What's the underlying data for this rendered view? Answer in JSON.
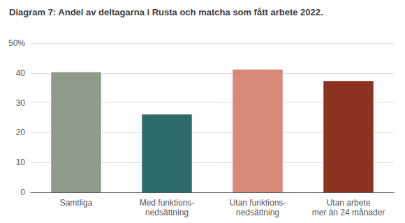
{
  "chart_data": {
    "type": "bar",
    "title": "Diagram 7: Andel av deltagarna i Rusta och matcha som fått arbete 2022.",
    "categories": [
      "Samtliga",
      "Med funktions-\nnedsättning",
      "Utan funktions-\nnedsättning",
      "Utan arbete\nmer än 24 månader"
    ],
    "values": [
      40.3,
      26.1,
      41.2,
      37.3
    ],
    "colors": [
      "#8f9a8b",
      "#2e6b6b",
      "#d9897a",
      "#8b3320"
    ],
    "ylim": [
      0,
      50
    ],
    "yticks": [
      0,
      10,
      20,
      30,
      40,
      {
        "value": 50,
        "label": "50%"
      }
    ],
    "grid": true
  }
}
